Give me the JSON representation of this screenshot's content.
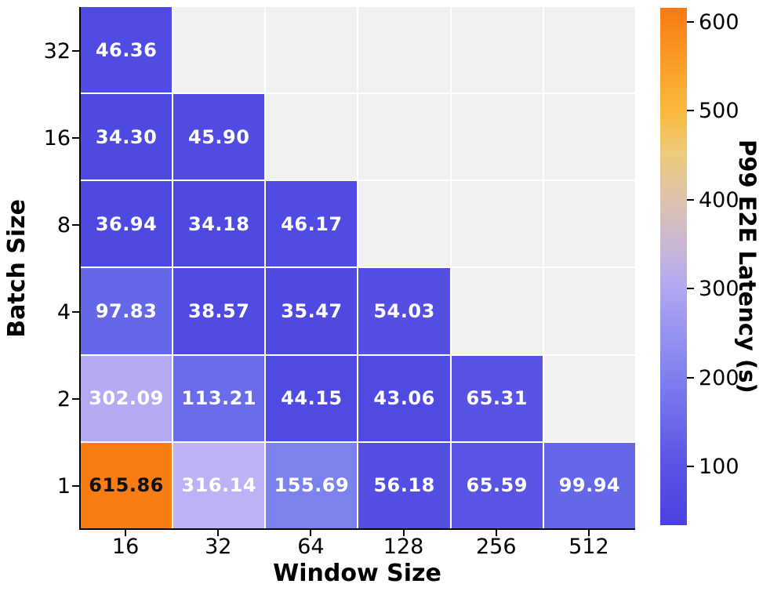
{
  "chart_data": {
    "type": "heatmap",
    "title": "",
    "xlabel": "Window Size",
    "ylabel": "Batch Size",
    "x_categories": [
      "16",
      "32",
      "64",
      "128",
      "256",
      "512"
    ],
    "y_categories": [
      "32",
      "16",
      "8",
      "4",
      "2",
      "1"
    ],
    "values": [
      [
        46.36,
        null,
        null,
        null,
        null,
        null
      ],
      [
        34.3,
        45.9,
        null,
        null,
        null,
        null
      ],
      [
        36.94,
        34.18,
        46.17,
        null,
        null,
        null
      ],
      [
        97.83,
        38.57,
        35.47,
        54.03,
        null,
        null
      ],
      [
        302.09,
        113.21,
        44.15,
        43.06,
        65.31,
        null
      ],
      [
        615.86,
        316.14,
        155.69,
        56.18,
        65.59,
        99.94
      ]
    ],
    "labels": [
      [
        "46.36",
        "",
        "",
        "",
        "",
        ""
      ],
      [
        "34.30",
        "45.90",
        "",
        "",
        "",
        ""
      ],
      [
        "36.94",
        "34.18",
        "46.17",
        "",
        "",
        ""
      ],
      [
        "97.83",
        "38.57",
        "35.47",
        "54.03",
        "",
        ""
      ],
      [
        "302.09",
        "113.21",
        "44.15",
        "43.06",
        "65.31",
        ""
      ],
      [
        "615.86",
        "316.14",
        "155.69",
        "56.18",
        "65.59",
        "99.94"
      ]
    ],
    "cell_colors": [
      [
        "#504be2",
        null,
        null,
        null,
        null,
        null
      ],
      [
        "#4e49e1",
        "#504be2",
        null,
        null,
        null,
        null
      ],
      [
        "#4e4ae1",
        "#4e49e1",
        "#504be2",
        null,
        null,
        null
      ],
      [
        "#6468e8",
        "#4f4ae1",
        "#4e49e1",
        "#544ee3",
        null,
        null
      ],
      [
        "#b4aaf2",
        "#6a6cea",
        "#4f4be2",
        "#4f4ae2",
        "#5853e4",
        null
      ],
      [
        "#f87d14",
        "#bcb2f5",
        "#7b82ee",
        "#544fe3",
        "#5854e4",
        "#6467e8"
      ]
    ],
    "text_colors": [
      [
        "#ffffff",
        null,
        null,
        null,
        null,
        null
      ],
      [
        "#ffffff",
        "#ffffff",
        null,
        null,
        null,
        null
      ],
      [
        "#ffffff",
        "#ffffff",
        "#ffffff",
        null,
        null,
        null
      ],
      [
        "#ffffff",
        "#ffffff",
        "#ffffff",
        "#ffffff",
        null,
        null
      ],
      [
        "#ffffff",
        "#ffffff",
        "#ffffff",
        "#ffffff",
        "#ffffff",
        null
      ],
      [
        "#111111",
        "#ffffff",
        "#ffffff",
        "#ffffff",
        "#ffffff",
        "#ffffff"
      ]
    ],
    "empty_color": "#f2f1f2",
    "grid_line_color": "#ffffff",
    "colorbar": {
      "label": "P99 E2E Latency (s)",
      "ticks": [
        600,
        500,
        400,
        300,
        200,
        100
      ],
      "vmin": 34.18,
      "vmax": 615.86,
      "gradient_stops": [
        {
          "pos": 0.0,
          "color": "#4b41e0"
        },
        {
          "pos": 0.11,
          "color": "#5952e4"
        },
        {
          "pos": 0.28,
          "color": "#7c7eee"
        },
        {
          "pos": 0.46,
          "color": "#b1a8f2"
        },
        {
          "pos": 0.55,
          "color": "#ccb9cf"
        },
        {
          "pos": 0.63,
          "color": "#dec3ad"
        },
        {
          "pos": 0.72,
          "color": "#edcb79"
        },
        {
          "pos": 0.8,
          "color": "#f9b93d"
        },
        {
          "pos": 0.9,
          "color": "#fa9b27"
        },
        {
          "pos": 1.0,
          "color": "#f87912"
        }
      ]
    }
  }
}
